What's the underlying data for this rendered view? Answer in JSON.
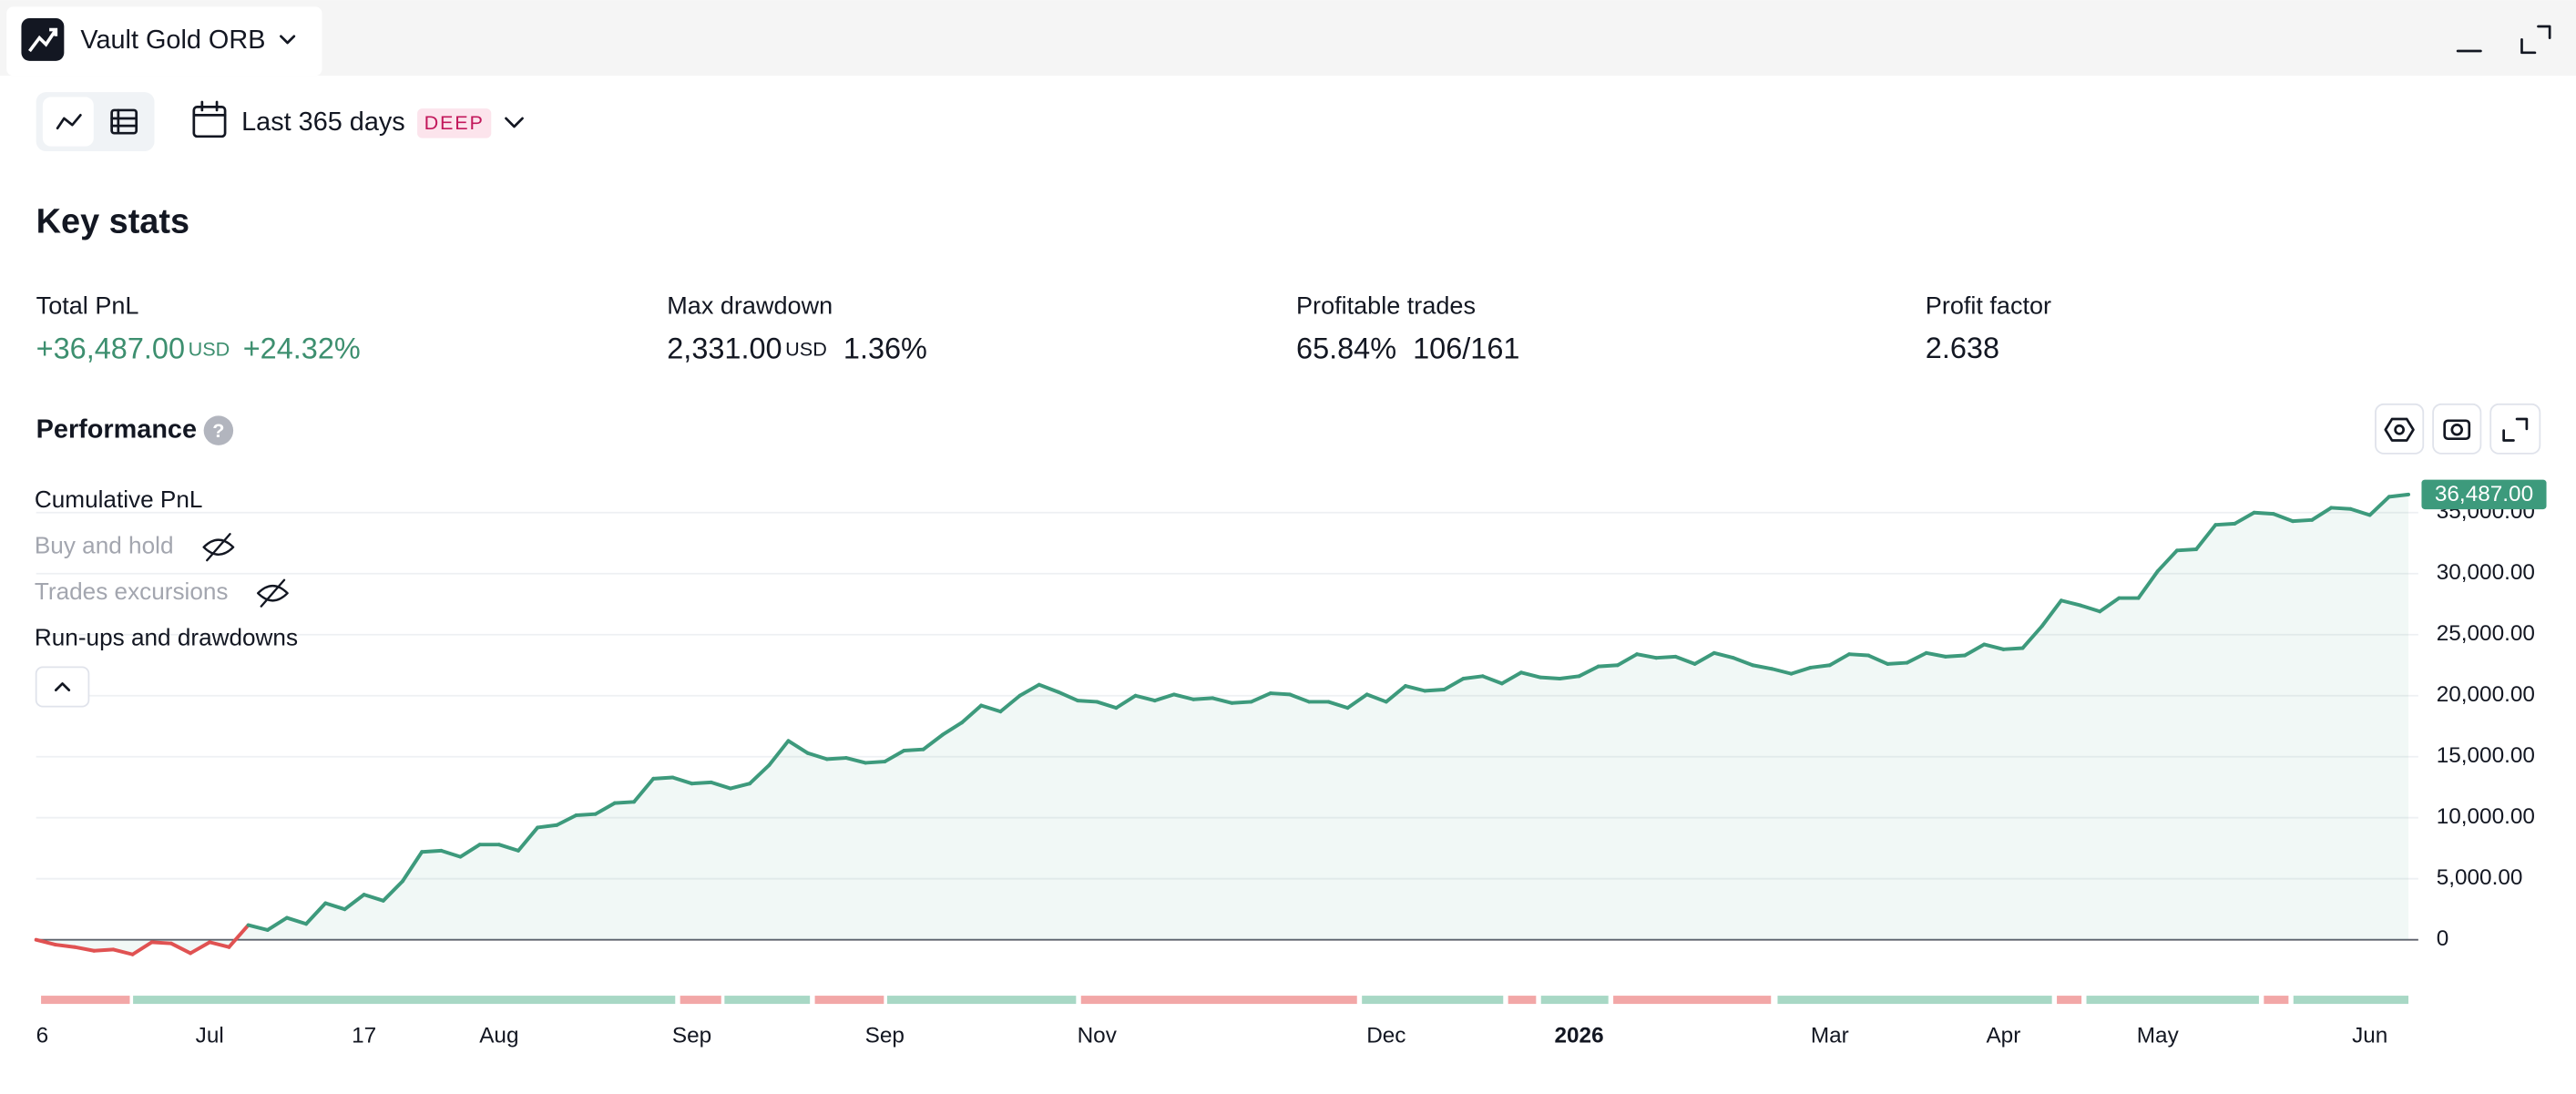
{
  "window": {
    "title": "Vault Gold ORB"
  },
  "toolbar": {
    "range": "Last 365 days",
    "badge": "DEEP"
  },
  "key_stats": {
    "title": "Key stats",
    "items": [
      {
        "label": "Total PnL",
        "value": "+36,487.00",
        "unit": "USD",
        "extra": "+24.32%"
      },
      {
        "label": "Max drawdown",
        "value": "2,331.00",
        "unit": "USD",
        "extra": "1.36%"
      },
      {
        "label": "Profitable trades",
        "value": "65.84%",
        "extra": "106/161"
      },
      {
        "label": "Profit factor",
        "value": "2.638"
      }
    ]
  },
  "performance": {
    "title": "Performance",
    "legend": [
      "Cumulative PnL",
      "Buy and hold",
      "Trades excursions",
      "Run-ups and drawdowns"
    ]
  },
  "chart_data": {
    "type": "line",
    "values": [
      0,
      -400,
      -600,
      -900,
      -800,
      -1200,
      -200,
      -300,
      -1100,
      -200,
      -600,
      1200,
      800,
      1800,
      1300,
      3000,
      2500,
      3700,
      3200,
      4800,
      7200,
      7300,
      6800,
      7800,
      7800,
      7300,
      9200,
      9400,
      10200,
      10300,
      11200,
      11300,
      13200,
      13300,
      12800,
      12900,
      12400,
      12800,
      14300,
      16300,
      15300,
      14800,
      14900,
      14500,
      14600,
      15500,
      15600,
      16800,
      17800,
      19200,
      18700,
      20000,
      20900,
      20300,
      19600,
      19500,
      19000,
      20000,
      19600,
      20100,
      19700,
      19800,
      19400,
      19500,
      20200,
      20100,
      19500,
      19500,
      19000,
      20100,
      19500,
      20800,
      20400,
      20500,
      21400,
      21600,
      21000,
      21900,
      21500,
      21400,
      21600,
      22400,
      22500,
      23400,
      23100,
      23200,
      22600,
      23500,
      23100,
      22500,
      22200,
      21800,
      22300,
      22500,
      23400,
      23300,
      22600,
      22700,
      23500,
      23200,
      23300,
      24200,
      23800,
      23900,
      25700,
      27800,
      27400,
      26900,
      28000,
      28000,
      30200,
      31900,
      32000,
      34000,
      34100,
      35000,
      34900,
      34300,
      34400,
      35400,
      35300,
      34800,
      36300,
      36487
    ],
    "last_label": "36,487.00",
    "colors": {
      "positive": "#3d9a7c",
      "negative": "#e05252"
    },
    "ylim": [
      -1500,
      37500
    ],
    "yticks": [
      0,
      {
        "value": 5000,
        "label": "5,000.00"
      },
      {
        "value": 10000,
        "label": "10,000.00"
      },
      {
        "value": 15000,
        "label": "15,000.00"
      },
      {
        "value": 20000,
        "label": "20,000.00"
      },
      {
        "value": 25000,
        "label": "25,000.00"
      },
      {
        "value": 30000,
        "label": "30,000.00"
      },
      {
        "value": 35000,
        "label": "35,000.00"
      }
    ],
    "xlim": [
      0,
      123
    ],
    "xticks": [
      {
        "value": 0,
        "label": "6"
      },
      {
        "value": 9,
        "label": "Jul"
      },
      {
        "value": 17,
        "label": "17"
      },
      {
        "value": 24,
        "label": "Aug"
      },
      {
        "value": 34,
        "label": "Sep"
      },
      {
        "value": 44,
        "label": "Sep"
      },
      {
        "value": 55,
        "label": "Nov"
      },
      {
        "value": 70,
        "label": "Dec"
      },
      {
        "value": 80,
        "label": "2026"
      },
      {
        "value": 93,
        "label": "Mar"
      },
      {
        "value": 102,
        "label": "Apr"
      },
      {
        "value": 110,
        "label": "May"
      },
      {
        "value": 121,
        "label": "Jun"
      }
    ],
    "grid": true
  }
}
